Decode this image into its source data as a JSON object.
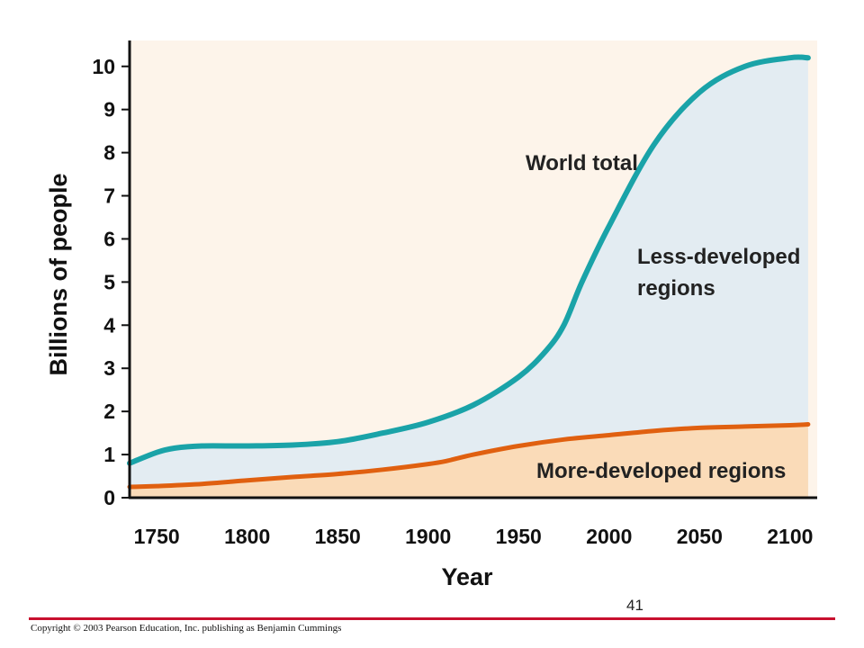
{
  "chart_data": {
    "type": "area",
    "title": "",
    "xlabel": "Year",
    "ylabel": "Billions of people",
    "xlim": [
      1735,
      2115
    ],
    "ylim": [
      0,
      10.6
    ],
    "xticks": [
      1750,
      1800,
      1850,
      1900,
      1950,
      2000,
      2050,
      2100
    ],
    "yticks": [
      0,
      1,
      2,
      3,
      4,
      5,
      6,
      7,
      8,
      9,
      10
    ],
    "grid": false,
    "legend": "none",
    "series": [
      {
        "name": "World total",
        "color": "#1aa3a8",
        "x": [
          1735,
          1750,
          1760,
          1775,
          1800,
          1825,
          1850,
          1875,
          1900,
          1925,
          1950,
          1965,
          1975,
          1985,
          2000,
          2025,
          2050,
          2075,
          2100,
          2110
        ],
        "y": [
          0.8,
          1.05,
          1.15,
          1.2,
          1.2,
          1.22,
          1.3,
          1.5,
          1.75,
          2.15,
          2.8,
          3.4,
          4.0,
          5.0,
          6.3,
          8.2,
          9.4,
          10.0,
          10.2,
          10.2
        ]
      },
      {
        "name": "More-developed regions",
        "color": "#e06010",
        "x": [
          1735,
          1750,
          1775,
          1800,
          1825,
          1850,
          1875,
          1900,
          1910,
          1925,
          1950,
          1975,
          2000,
          2025,
          2050,
          2075,
          2100,
          2110
        ],
        "y": [
          0.25,
          0.27,
          0.32,
          0.4,
          0.48,
          0.55,
          0.65,
          0.78,
          0.85,
          1.0,
          1.2,
          1.35,
          1.45,
          1.55,
          1.62,
          1.65,
          1.68,
          1.7
        ]
      }
    ],
    "annotations": {
      "world_total": "World total",
      "less_developed": [
        "Less-developed",
        "regions"
      ],
      "more_developed": "More-developed regions"
    },
    "fills": {
      "background": "#fdf4ea",
      "less_developed": "#e3ecf2",
      "more_developed": "#fadbb8"
    }
  },
  "slide_number": "41",
  "copyright": "Copyright © 2003 Pearson Education, Inc. publishing as Benjamin Cummings",
  "colors": {
    "footer_rule": "#c8102e"
  }
}
